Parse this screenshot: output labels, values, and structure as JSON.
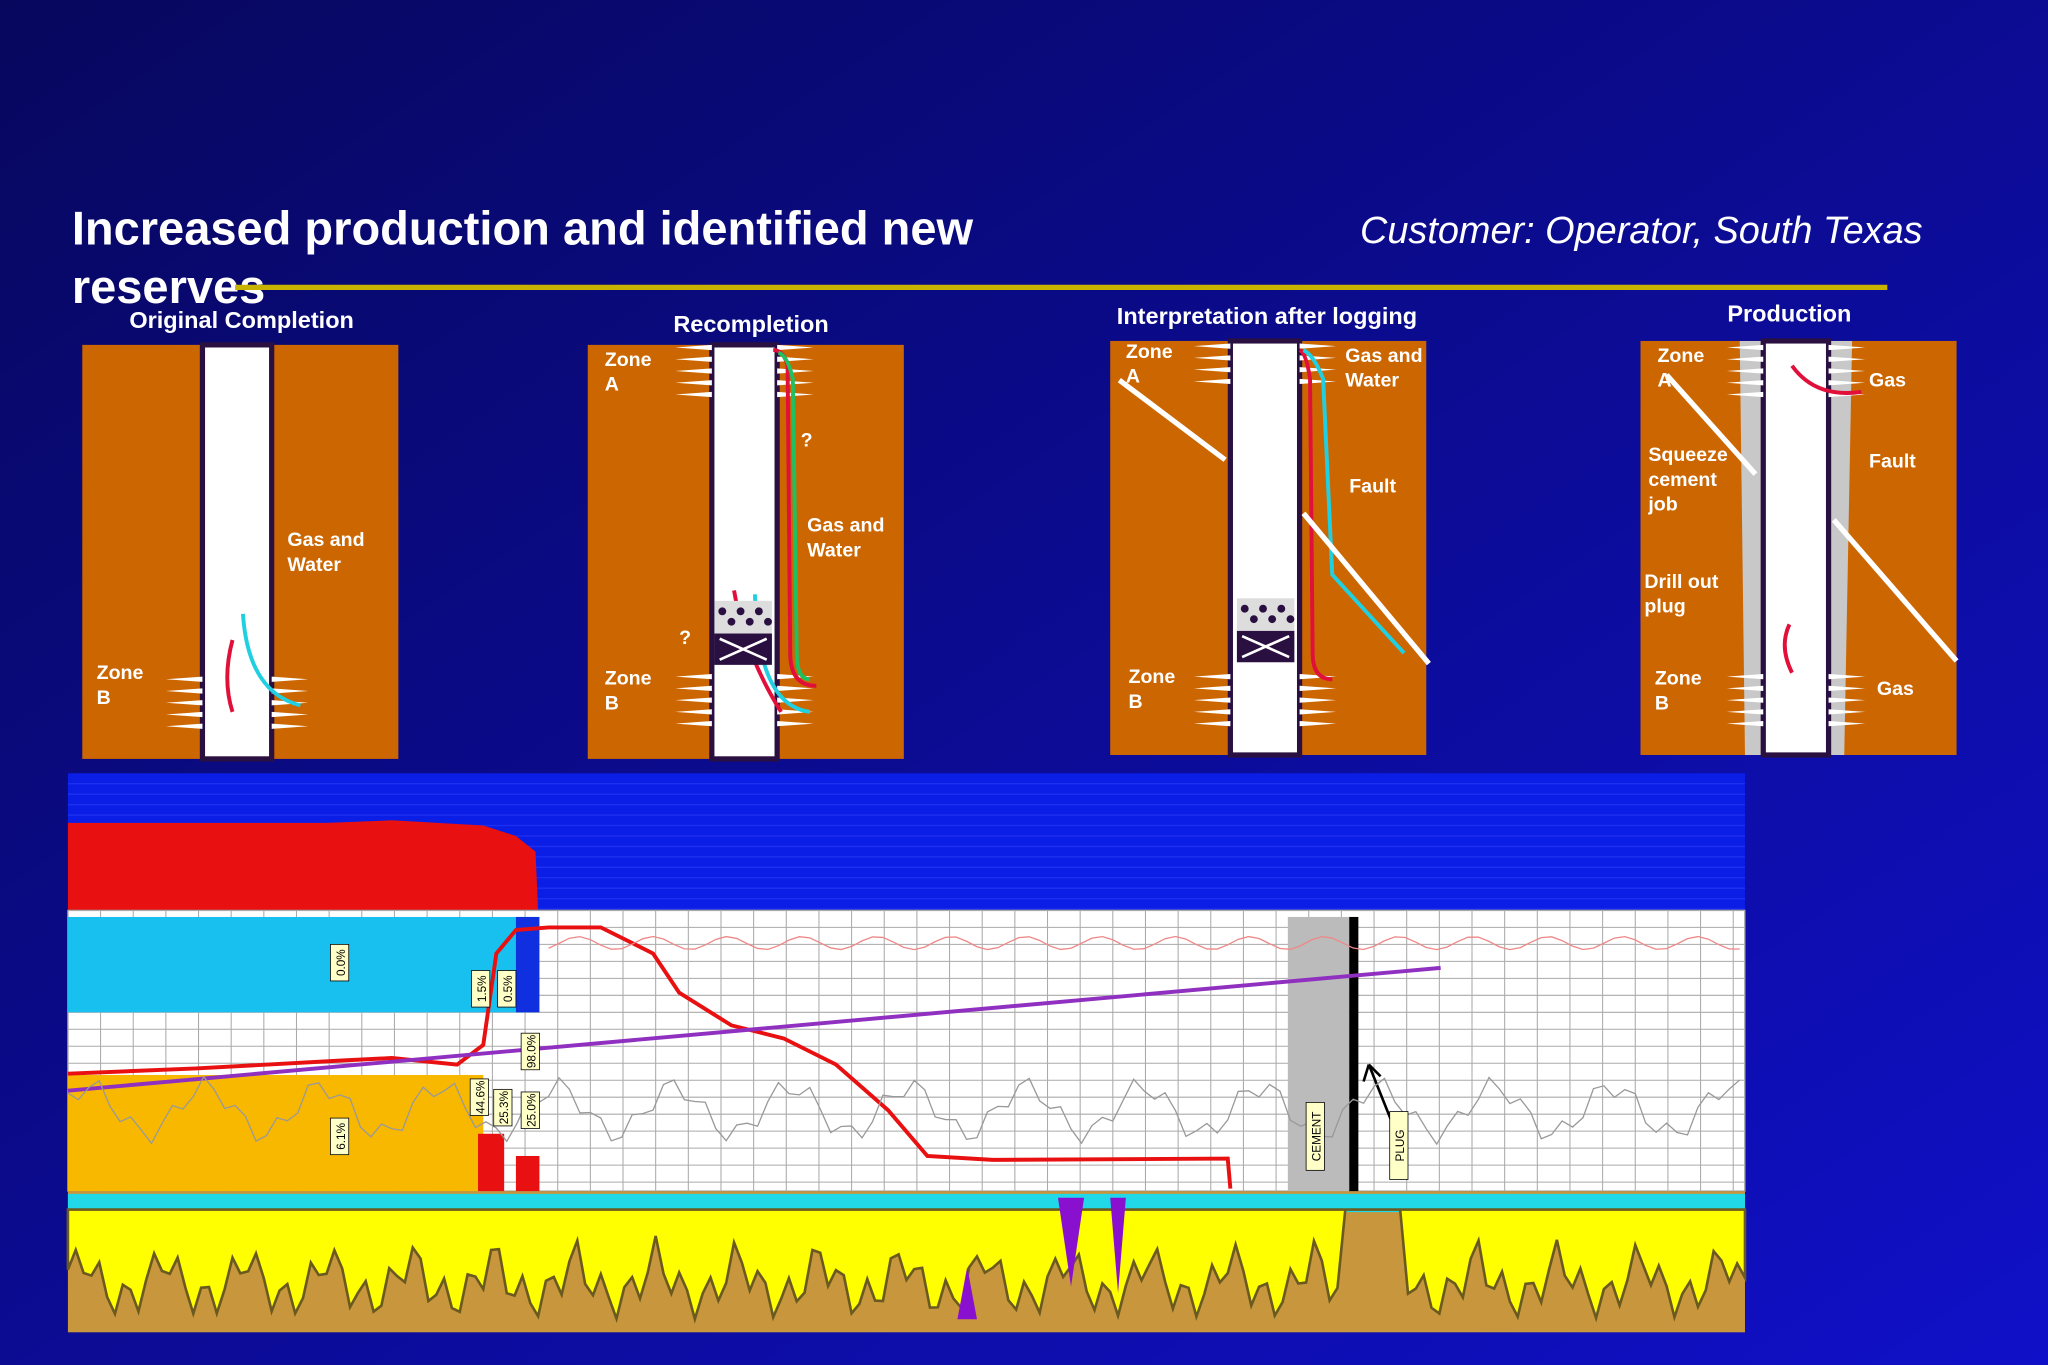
{
  "header": {
    "title_lines": [
      "Increased production and identified new",
      "reserves"
    ],
    "customer": "Customer: Operator, South Texas"
  },
  "panels": [
    {
      "title": "Original Completion",
      "labels": [
        [
          "Gas and",
          "Water"
        ],
        [
          "Zone",
          "B"
        ]
      ]
    },
    {
      "title": "Recompletion",
      "labels": [
        [
          "Zone",
          "A"
        ],
        [
          "?"
        ],
        [
          "Gas and",
          "Water"
        ],
        [
          "?"
        ],
        [
          "Zone",
          "B"
        ]
      ]
    },
    {
      "title": "Interpretation after logging",
      "labels": [
        [
          "Zone",
          "A"
        ],
        [
          "Gas and",
          "Water"
        ],
        [
          "Fault"
        ],
        [
          "Zone",
          "B"
        ]
      ]
    },
    {
      "title": "Production",
      "labels": [
        [
          "Zone",
          "A"
        ],
        [
          "Gas"
        ],
        [
          "Squeeze",
          "cement",
          "job"
        ],
        [
          "Fault"
        ],
        [
          "Drill out",
          "plug"
        ],
        [
          "Zone",
          "B"
        ],
        [
          "Gas"
        ]
      ]
    }
  ],
  "log": {
    "labels": [
      "0.0%",
      "1.5%",
      "0.5%",
      "98.0%",
      "44.6%",
      "25.3%",
      "25.0%",
      "6.1%",
      "CEMENT",
      "PLUG"
    ]
  }
}
